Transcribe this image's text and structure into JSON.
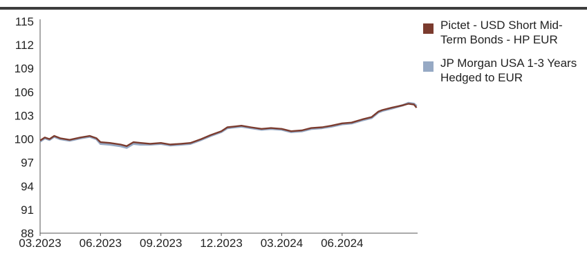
{
  "chart_data": {
    "type": "line",
    "title": "",
    "xlabel": "",
    "ylabel": "",
    "ylim": [
      88,
      115
    ],
    "yticks": [
      115,
      112,
      109,
      106,
      103,
      100,
      97,
      94,
      91,
      88
    ],
    "x_tick_labels": [
      "03.2023",
      "06.2023",
      "09.2023",
      "12.2023",
      "03.2024",
      "06.2024"
    ],
    "x_tick_dates": [
      "2023-03",
      "2023-06",
      "2023-09",
      "2023-12",
      "2024-03",
      "2024-06"
    ],
    "x_range": [
      "2023-03",
      "2024-09"
    ],
    "grid": false,
    "legend_position": "right",
    "series": [
      {
        "name": "Pictet - USD Short Mid-Term Bonds - HP EUR",
        "color": "#7b3b2e",
        "points": [
          [
            "2023-03-01",
            99.8
          ],
          [
            "2023-03-08",
            100.2
          ],
          [
            "2023-03-15",
            100.0
          ],
          [
            "2023-03-22",
            100.4
          ],
          [
            "2023-04-01",
            100.1
          ],
          [
            "2023-04-15",
            99.9
          ],
          [
            "2023-05-01",
            100.2
          ],
          [
            "2023-05-15",
            100.4
          ],
          [
            "2023-05-25",
            100.1
          ],
          [
            "2023-06-01",
            99.6
          ],
          [
            "2023-06-15",
            99.5
          ],
          [
            "2023-07-01",
            99.3
          ],
          [
            "2023-07-10",
            99.1
          ],
          [
            "2023-07-20",
            99.6
          ],
          [
            "2023-08-01",
            99.5
          ],
          [
            "2023-08-15",
            99.4
          ],
          [
            "2023-09-01",
            99.5
          ],
          [
            "2023-09-15",
            99.3
          ],
          [
            "2023-10-01",
            99.4
          ],
          [
            "2023-10-15",
            99.5
          ],
          [
            "2023-11-01",
            100.0
          ],
          [
            "2023-11-15",
            100.5
          ],
          [
            "2023-12-01",
            101.0
          ],
          [
            "2023-12-10",
            101.5
          ],
          [
            "2023-12-20",
            101.6
          ],
          [
            "2024-01-01",
            101.7
          ],
          [
            "2024-01-15",
            101.5
          ],
          [
            "2024-02-01",
            101.3
          ],
          [
            "2024-02-15",
            101.4
          ],
          [
            "2024-03-01",
            101.3
          ],
          [
            "2024-03-15",
            101.0
          ],
          [
            "2024-04-01",
            101.1
          ],
          [
            "2024-04-15",
            101.4
          ],
          [
            "2024-05-01",
            101.5
          ],
          [
            "2024-05-15",
            101.7
          ],
          [
            "2024-06-01",
            102.0
          ],
          [
            "2024-06-15",
            102.1
          ],
          [
            "2024-07-01",
            102.5
          ],
          [
            "2024-07-15",
            102.8
          ],
          [
            "2024-07-25",
            103.5
          ],
          [
            "2024-08-01",
            103.7
          ],
          [
            "2024-08-15",
            104.0
          ],
          [
            "2024-09-01",
            104.3
          ],
          [
            "2024-09-10",
            104.5
          ],
          [
            "2024-09-18",
            104.4
          ],
          [
            "2024-09-22",
            104.0
          ]
        ]
      },
      {
        "name": "JP Morgan USA 1-3 Years Hedged to EUR",
        "color": "#96a9c4",
        "points": [
          [
            "2023-03-01",
            99.7
          ],
          [
            "2023-03-08",
            100.1
          ],
          [
            "2023-03-15",
            99.9
          ],
          [
            "2023-03-22",
            100.3
          ],
          [
            "2023-04-01",
            100.0
          ],
          [
            "2023-04-15",
            99.8
          ],
          [
            "2023-05-01",
            100.1
          ],
          [
            "2023-05-15",
            100.3
          ],
          [
            "2023-05-25",
            100.0
          ],
          [
            "2023-06-01",
            99.4
          ],
          [
            "2023-06-15",
            99.3
          ],
          [
            "2023-07-01",
            99.1
          ],
          [
            "2023-07-10",
            98.9
          ],
          [
            "2023-07-20",
            99.4
          ],
          [
            "2023-08-01",
            99.3
          ],
          [
            "2023-08-15",
            99.3
          ],
          [
            "2023-09-01",
            99.4
          ],
          [
            "2023-09-15",
            99.2
          ],
          [
            "2023-10-01",
            99.3
          ],
          [
            "2023-10-15",
            99.4
          ],
          [
            "2023-11-01",
            99.9
          ],
          [
            "2023-11-15",
            100.4
          ],
          [
            "2023-12-01",
            100.9
          ],
          [
            "2023-12-10",
            101.4
          ],
          [
            "2023-12-20",
            101.5
          ],
          [
            "2024-01-01",
            101.6
          ],
          [
            "2024-01-15",
            101.4
          ],
          [
            "2024-02-01",
            101.2
          ],
          [
            "2024-02-15",
            101.3
          ],
          [
            "2024-03-01",
            101.2
          ],
          [
            "2024-03-15",
            100.9
          ],
          [
            "2024-04-01",
            101.0
          ],
          [
            "2024-04-15",
            101.3
          ],
          [
            "2024-05-01",
            101.4
          ],
          [
            "2024-05-15",
            101.6
          ],
          [
            "2024-06-01",
            101.9
          ],
          [
            "2024-06-15",
            102.0
          ],
          [
            "2024-07-01",
            102.4
          ],
          [
            "2024-07-15",
            102.7
          ],
          [
            "2024-07-25",
            103.4
          ],
          [
            "2024-08-01",
            103.6
          ],
          [
            "2024-08-15",
            103.9
          ],
          [
            "2024-09-01",
            104.3
          ],
          [
            "2024-09-10",
            104.6
          ],
          [
            "2024-09-18",
            104.5
          ],
          [
            "2024-09-22",
            104.2
          ]
        ]
      }
    ]
  }
}
